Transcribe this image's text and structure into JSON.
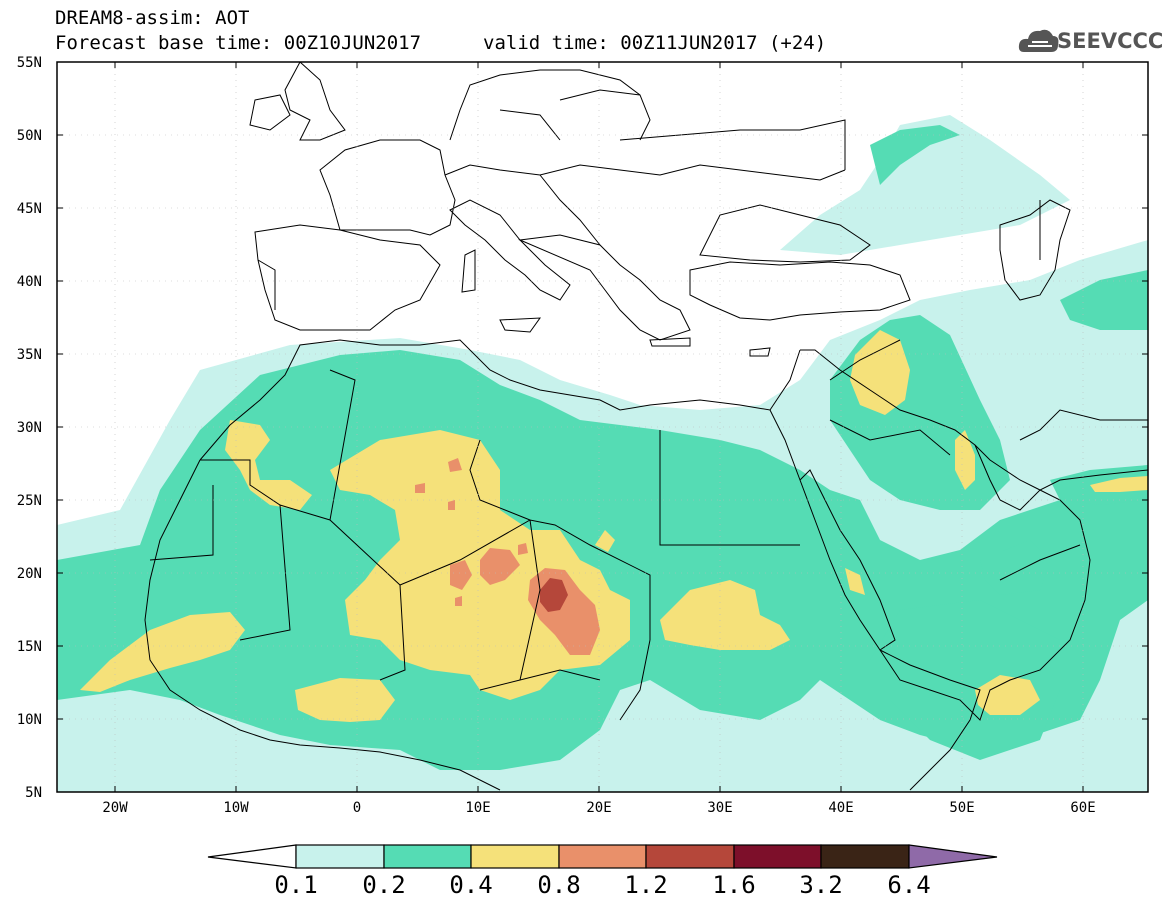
{
  "header": {
    "model_line": "DREAM8-assim: AOT",
    "base_line": "Forecast base time: 00Z10JUN2017",
    "valid_line": "valid time: 00Z11JUN2017 (+24)",
    "logo_text": "SEEVCCC",
    "logo_icon": "cloud-icon"
  },
  "map": {
    "lat_labels": [
      "55N",
      "50N",
      "45N",
      "40N",
      "35N",
      "30N",
      "25N",
      "20N",
      "15N",
      "10N",
      "5N"
    ],
    "lon_labels": [
      "20W",
      "10W",
      "0",
      "10E",
      "20E",
      "30E",
      "40E",
      "50E",
      "60E"
    ],
    "lon_range": [
      -25,
      65
    ],
    "lat_range": [
      5,
      55
    ]
  },
  "colorbar": {
    "labels": [
      "0.1",
      "0.2",
      "0.4",
      "0.8",
      "1.2",
      "1.6",
      "3.2",
      "6.4"
    ],
    "colors": [
      "#c8f2ec",
      "#55dcb4",
      "#f5e17a",
      "#e9906a",
      "#b5473a",
      "#7d0f2a",
      "#3a2416",
      "#8f6aa8"
    ]
  }
}
